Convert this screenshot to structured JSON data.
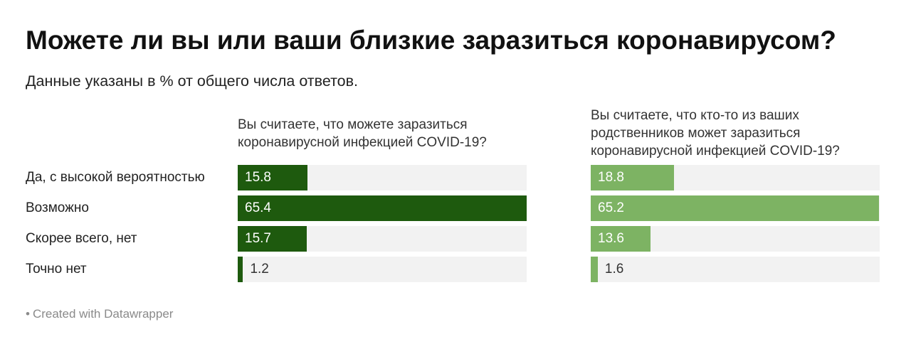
{
  "title": "Можете ли вы или ваши близкие заразиться коронавирусом?",
  "subtitle": "Данные указаны в % от общего числа ответов.",
  "footer": "Created with Datawrapper",
  "colors": {
    "series1": "#1e5a0e",
    "series2": "#7db363",
    "track": "#f2f2f2"
  },
  "chart_data": {
    "type": "bar",
    "orientation": "horizontal",
    "categories": [
      "Да, с высокой вероятностью",
      "Возможно",
      "Скорее всего, нет",
      "Точно нет"
    ],
    "xlim": [
      0,
      65.4
    ],
    "series": [
      {
        "name": "Вы считаете, что можете заразиться коронавирусной инфекцией COVID-19?",
        "values": [
          15.8,
          65.4,
          15.7,
          1.2
        ]
      },
      {
        "name": "Вы считаете, что кто-то из ваших родственников может заразиться коронавирусной инфекцией COVID-19?",
        "values": [
          18.8,
          65.2,
          13.6,
          1.6
        ]
      }
    ]
  }
}
